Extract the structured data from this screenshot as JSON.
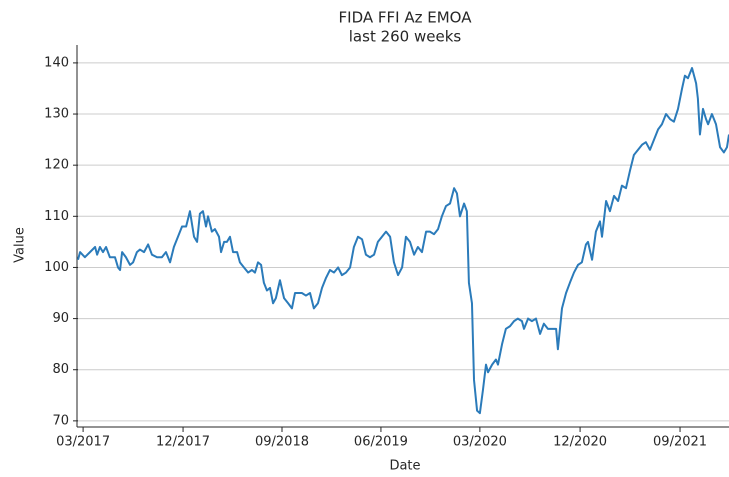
{
  "chart_data": {
    "type": "line",
    "title": "FIDA FFI Az EMOA",
    "subtitle": "last 260 weeks",
    "x_label": "Date",
    "y_label": "Value",
    "xlim": [
      0,
      255.3
    ],
    "ylim": [
      68.8,
      143.5
    ],
    "xticks": [
      {
        "value": 2,
        "label": "03/2017"
      },
      {
        "value": 41.2,
        "label": "12/2017"
      },
      {
        "value": 80,
        "label": "09/2018"
      },
      {
        "value": 118.8,
        "label": "06/2019"
      },
      {
        "value": 157.6,
        "label": "03/2020"
      },
      {
        "value": 196.9,
        "label": "12/2020"
      },
      {
        "value": 236.1,
        "label": "09/2021"
      }
    ],
    "yticks": [
      70,
      80,
      90,
      100,
      110,
      120,
      130,
      140
    ],
    "grid": true,
    "x": [
      0,
      0.8,
      2.7,
      4.7,
      6.7,
      7.5,
      8.6,
      9.8,
      11,
      12.5,
      14.5,
      15.7,
      16.5,
      17.3,
      18.8,
      20.4,
      21.6,
      23.1,
      24.3,
      25.9,
      27.5,
      29,
      31,
      32.9,
      34.5,
      36.1,
      37.6,
      39.2,
      40.8,
      42.4,
      43.9,
      45.5,
      46.7,
      47.8,
      49,
      50.2,
      51,
      52.5,
      53.7,
      55.3,
      56.1,
      57.3,
      58.4,
      59.6,
      60.8,
      62.4,
      63.5,
      65.1,
      66.7,
      68.2,
      69.4,
      70.6,
      71.8,
      72.9,
      74.1,
      75.3,
      76.5,
      77.6,
      79.2,
      80.8,
      82.4,
      83.9,
      85.1,
      86.3,
      87.8,
      89.4,
      91,
      92.5,
      94.1,
      95.7,
      97.3,
      98.8,
      100.4,
      102,
      103.5,
      105.1,
      106.7,
      108.2,
      109.8,
      111.4,
      112.9,
      114.5,
      116.1,
      117.6,
      119.2,
      120.8,
      122.4,
      123.9,
      125.5,
      127.1,
      128.6,
      130.2,
      131.8,
      133.3,
      134.9,
      136.5,
      138,
      139.6,
      141.2,
      142.7,
      144.3,
      145.9,
      147.5,
      148.6,
      149.8,
      151.4,
      152.5,
      153.3,
      154.5,
      155.3,
      156.5,
      157.6,
      158.8,
      160,
      160.8,
      162.4,
      163.9,
      164.7,
      166.3,
      167.8,
      169.4,
      171,
      172.5,
      174.1,
      174.9,
      176.5,
      178,
      179.6,
      181.2,
      182.7,
      184.3,
      185.9,
      187.5,
      188.2,
      189.8,
      191.4,
      192.9,
      194.5,
      196.1,
      197.6,
      199.2,
      200,
      201.6,
      203.1,
      204.7,
      205.5,
      207.1,
      208.6,
      210.2,
      211.8,
      213.3,
      214.9,
      216.5,
      218,
      219.6,
      221.2,
      222.7,
      224.3,
      225.9,
      227.5,
      229,
      230.6,
      232.2,
      233.7,
      235.3,
      236.9,
      238,
      239.2,
      240.8,
      242.4,
      243.1,
      243.9,
      245.1,
      246.3,
      247.1,
      248.6,
      250.2,
      251.8,
      253.3,
      254.5,
      255.3
    ],
    "series": [
      {
        "color": "#2b7bba",
        "values": [
          101.5,
          103,
          102,
          103,
          104,
          102.5,
          104,
          103,
          104,
          102,
          102,
          100,
          99.5,
          103,
          102,
          100.5,
          101,
          103,
          103.5,
          103,
          104.5,
          102.5,
          102,
          102,
          103,
          101,
          104,
          106,
          108,
          108,
          111,
          106,
          105,
          110.5,
          111,
          108,
          110,
          107,
          107.5,
          106,
          103,
          105,
          105,
          106,
          103,
          103,
          101,
          100,
          99,
          99.5,
          99,
          101,
          100.5,
          97,
          95.5,
          96,
          93,
          94,
          97.5,
          94,
          93,
          92,
          95,
          95,
          95,
          94.5,
          95,
          92,
          93,
          96,
          98,
          99.5,
          99,
          100,
          98.5,
          99,
          100,
          104,
          106,
          105.5,
          102.5,
          102,
          102.5,
          105,
          106,
          107,
          106,
          101,
          98.5,
          100,
          106,
          105,
          102.5,
          104,
          103,
          107,
          107,
          106.5,
          107.5,
          110,
          112,
          112.5,
          115.5,
          114.5,
          110,
          112.5,
          111,
          97,
          93,
          78,
          72,
          71.5,
          76,
          81,
          79.5,
          81,
          82,
          81,
          85,
          88,
          88.5,
          89.5,
          90,
          89.5,
          88,
          90,
          89.5,
          90,
          87,
          89,
          88,
          88,
          88,
          84,
          92,
          95,
          97,
          99,
          100.5,
          101,
          104.5,
          105,
          101.5,
          107,
          109,
          106,
          113,
          111,
          114,
          113,
          116,
          115.5,
          119,
          122,
          123,
          124,
          124.5,
          123,
          125,
          127,
          128,
          130,
          129,
          128.5,
          131,
          135,
          137.5,
          137,
          139,
          136,
          133,
          126,
          131,
          129,
          128,
          130,
          128,
          123.5,
          122.5,
          123.5,
          126
        ]
      }
    ]
  }
}
